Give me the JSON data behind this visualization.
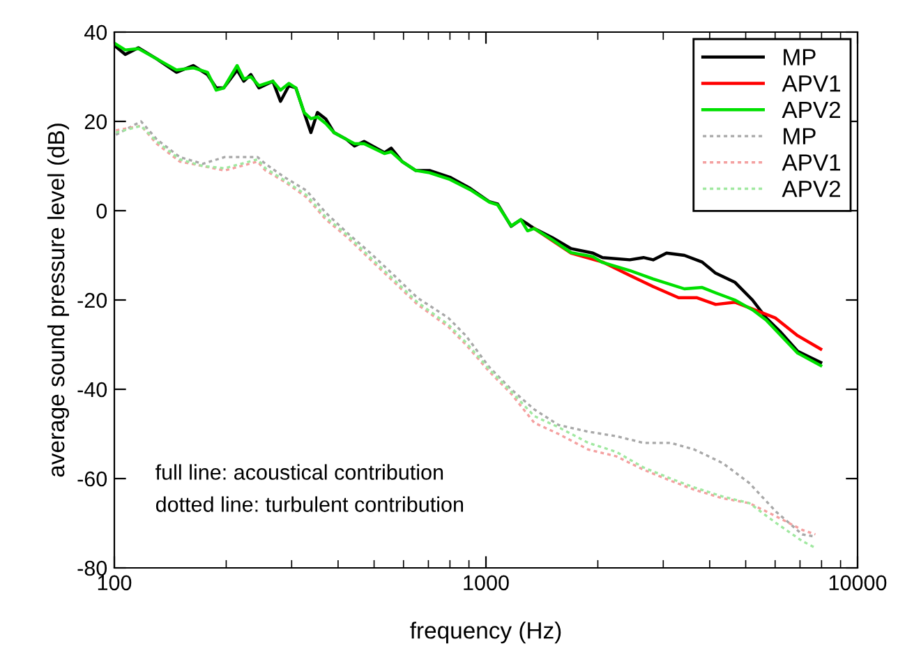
{
  "chart_data": {
    "type": "line",
    "xlabel": "frequency (Hz)",
    "ylabel": "average sound pressure level (dB)",
    "log": "x",
    "xlim": [
      100,
      10000
    ],
    "xticks": [
      100,
      1000,
      10000
    ],
    "ylim": [
      -80,
      40
    ],
    "yticks": [
      -80,
      -60,
      -40,
      -20,
      0,
      20,
      40
    ],
    "grid": false,
    "legend": "top right",
    "marker": "none",
    "annotations": [
      "full line: acoustical contribution",
      "dotted line: turbulent contribution"
    ],
    "series": [
      {
        "name": "MP",
        "color": "#000000",
        "line_style": "solid",
        "x": [
          100,
          107,
          116,
          130,
          147,
          163,
          178,
          188,
          197,
          214,
          223,
          233,
          245,
          267,
          280,
          295,
          308,
          324,
          338,
          352,
          371,
          390,
          421,
          443,
          470,
          533,
          556,
          595,
          647,
          705,
          800,
          907,
          1022,
          1075,
          1169,
          1241,
          1294,
          1349,
          1507,
          1695,
          1940,
          2059,
          2438,
          2654,
          2818,
          3062,
          3420,
          3818,
          4150,
          4673,
          5214,
          5675,
          6176,
          6900,
          7960
        ],
        "values": [
          37,
          35,
          36.5,
          34,
          31,
          32.5,
          30.5,
          27.5,
          27.5,
          31.5,
          29,
          30.5,
          27.5,
          29,
          24.5,
          28,
          27.5,
          22,
          17.5,
          22,
          20.5,
          17.5,
          16,
          14.5,
          15.5,
          13,
          14,
          11,
          9,
          9,
          7.5,
          5,
          2,
          1.5,
          -3.5,
          -2,
          -3,
          -4,
          -6,
          -8.5,
          -9.5,
          -10.5,
          -11,
          -10.5,
          -11,
          -9.5,
          -10,
          -11.5,
          -14,
          -16,
          -20,
          -24,
          -27,
          -31.5,
          -34
        ]
      },
      {
        "name": "APV1",
        "color": "#ff0000",
        "line_style": "solid",
        "x": [
          1349,
          1695,
          2059,
          2438,
          2818,
          3300,
          3700,
          4150,
          4673,
          5214,
          6000,
          6900,
          7960
        ],
        "values": [
          -4,
          -9.5,
          -11.5,
          -14.5,
          -17,
          -19.5,
          -19.5,
          -21,
          -20.5,
          -22,
          -24,
          -28,
          -31
        ]
      },
      {
        "name": "APV2",
        "color": "#00e000",
        "line_style": "solid",
        "x": [
          100,
          107,
          116,
          130,
          147,
          163,
          178,
          188,
          197,
          214,
          223,
          233,
          245,
          267,
          280,
          295,
          308,
          324,
          338,
          352,
          371,
          390,
          421,
          443,
          470,
          533,
          556,
          595,
          647,
          705,
          800,
          907,
          1022,
          1075,
          1169,
          1241,
          1294,
          1349,
          1507,
          1695,
          1940,
          2059,
          2438,
          2818,
          3420,
          3818,
          4150,
          4673,
          5214,
          5675,
          6900,
          7960
        ],
        "values": [
          37.5,
          36,
          36.3,
          34,
          31.5,
          32,
          31,
          27,
          27.5,
          32.5,
          29.5,
          30,
          28,
          29,
          27,
          28.5,
          27.5,
          22,
          20.6,
          21,
          19.5,
          17.5,
          16,
          15,
          15,
          12.8,
          13.2,
          11,
          9,
          8.5,
          7,
          4.7,
          1.9,
          1.3,
          -3.4,
          -2,
          -4.5,
          -4,
          -6.5,
          -9.4,
          -10.3,
          -11.6,
          -13.4,
          -15.3,
          -17.5,
          -17.2,
          -18.4,
          -20,
          -22.2,
          -24.5,
          -31.9,
          -34.7
        ]
      },
      {
        "name": "MP",
        "color": "#a8a8a8",
        "line_style": "dotted",
        "x": [
          101,
          118,
          130,
          150,
          173,
          198,
          243,
          255,
          287,
          329,
          371,
          424,
          489,
          566,
          654,
          792,
          883,
          1020,
          1169,
          1349,
          1568,
          1886,
          2240,
          2654,
          3144,
          3640,
          4330,
          5113,
          6050,
          7100,
          7700
        ],
        "values": [
          17,
          20,
          16,
          12,
          10.5,
          12,
          12,
          10.5,
          7.5,
          4.5,
          -0.5,
          -5,
          -9.5,
          -14.5,
          -19.5,
          -24,
          -28,
          -35,
          -40,
          -44.5,
          -48,
          -49.5,
          -50.5,
          -52,
          -52,
          -53.5,
          -56.5,
          -61,
          -67.5,
          -72.5,
          -73
        ]
      },
      {
        "name": "APV1",
        "color": "#f4a0a0",
        "line_style": "dotted",
        "x": [
          101,
          118,
          130,
          150,
          173,
          198,
          243,
          255,
          287,
          329,
          371,
          424,
          489,
          566,
          654,
          792,
          883,
          1020,
          1169,
          1349,
          1568,
          1886,
          2240,
          2654,
          3144,
          3640,
          4330,
          5113,
          6050,
          7100,
          7700
        ],
        "values": [
          18,
          19,
          15,
          11,
          10,
          9,
          11,
          9,
          6.5,
          3,
          -2,
          -6,
          -11,
          -16,
          -21,
          -26,
          -30,
          -36,
          -41,
          -47.5,
          -50,
          -53.5,
          -55,
          -58,
          -60.5,
          -62.5,
          -64.4,
          -65.5,
          -68.5,
          -71.5,
          -72.5
        ]
      },
      {
        "name": "APV2",
        "color": "#a0e8a0",
        "line_style": "dotted",
        "x": [
          101,
          118,
          130,
          150,
          173,
          198,
          243,
          255,
          287,
          329,
          371,
          424,
          489,
          566,
          654,
          792,
          883,
          1020,
          1169,
          1349,
          1568,
          1886,
          2240,
          2654,
          3144,
          3640,
          4330,
          5113,
          6050,
          7100,
          7700
        ],
        "values": [
          17.5,
          19,
          15.5,
          11.5,
          10,
          9.5,
          11.5,
          9.5,
          6.8,
          3.5,
          -1.5,
          -5.5,
          -10.5,
          -15.5,
          -20.5,
          -25.5,
          -29.5,
          -35.5,
          -40.5,
          -46,
          -48.5,
          -52,
          -54,
          -57.5,
          -60,
          -62,
          -64,
          -65.5,
          -70,
          -74,
          -75.5
        ]
      }
    ]
  }
}
